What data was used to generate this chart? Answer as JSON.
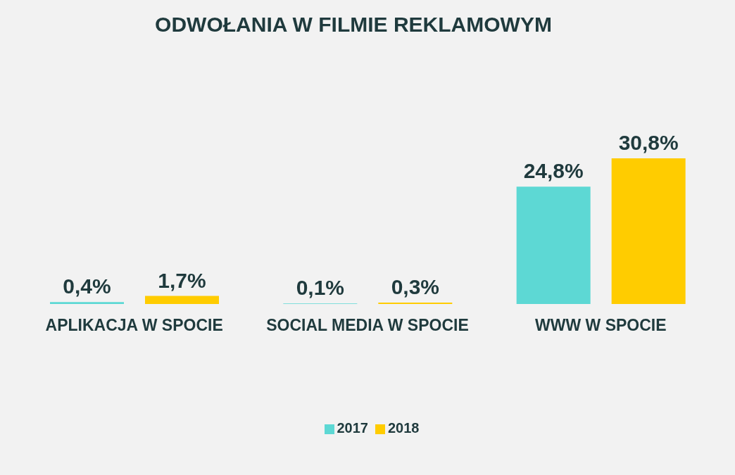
{
  "chart_data": {
    "type": "bar",
    "title": "ODWOŁANIA W FILMIE REKLAMOWYM",
    "categories": [
      "APLIKACJA W SPOCIE",
      "SOCIAL MEDIA W SPOCIE",
      "WWW W SPOCIE"
    ],
    "series": [
      {
        "name": "2017",
        "color": "#5dd8d4",
        "values": [
          0.4,
          0.1,
          24.8
        ],
        "value_labels": [
          "0,4%",
          "0,1%",
          "24,8%"
        ]
      },
      {
        "name": "2018",
        "color": "#ffcc00",
        "values": [
          1.7,
          0.3,
          30.8
        ],
        "value_labels": [
          "1,7%",
          "0,3%",
          "30,8%"
        ]
      }
    ],
    "legend": "bottom"
  }
}
